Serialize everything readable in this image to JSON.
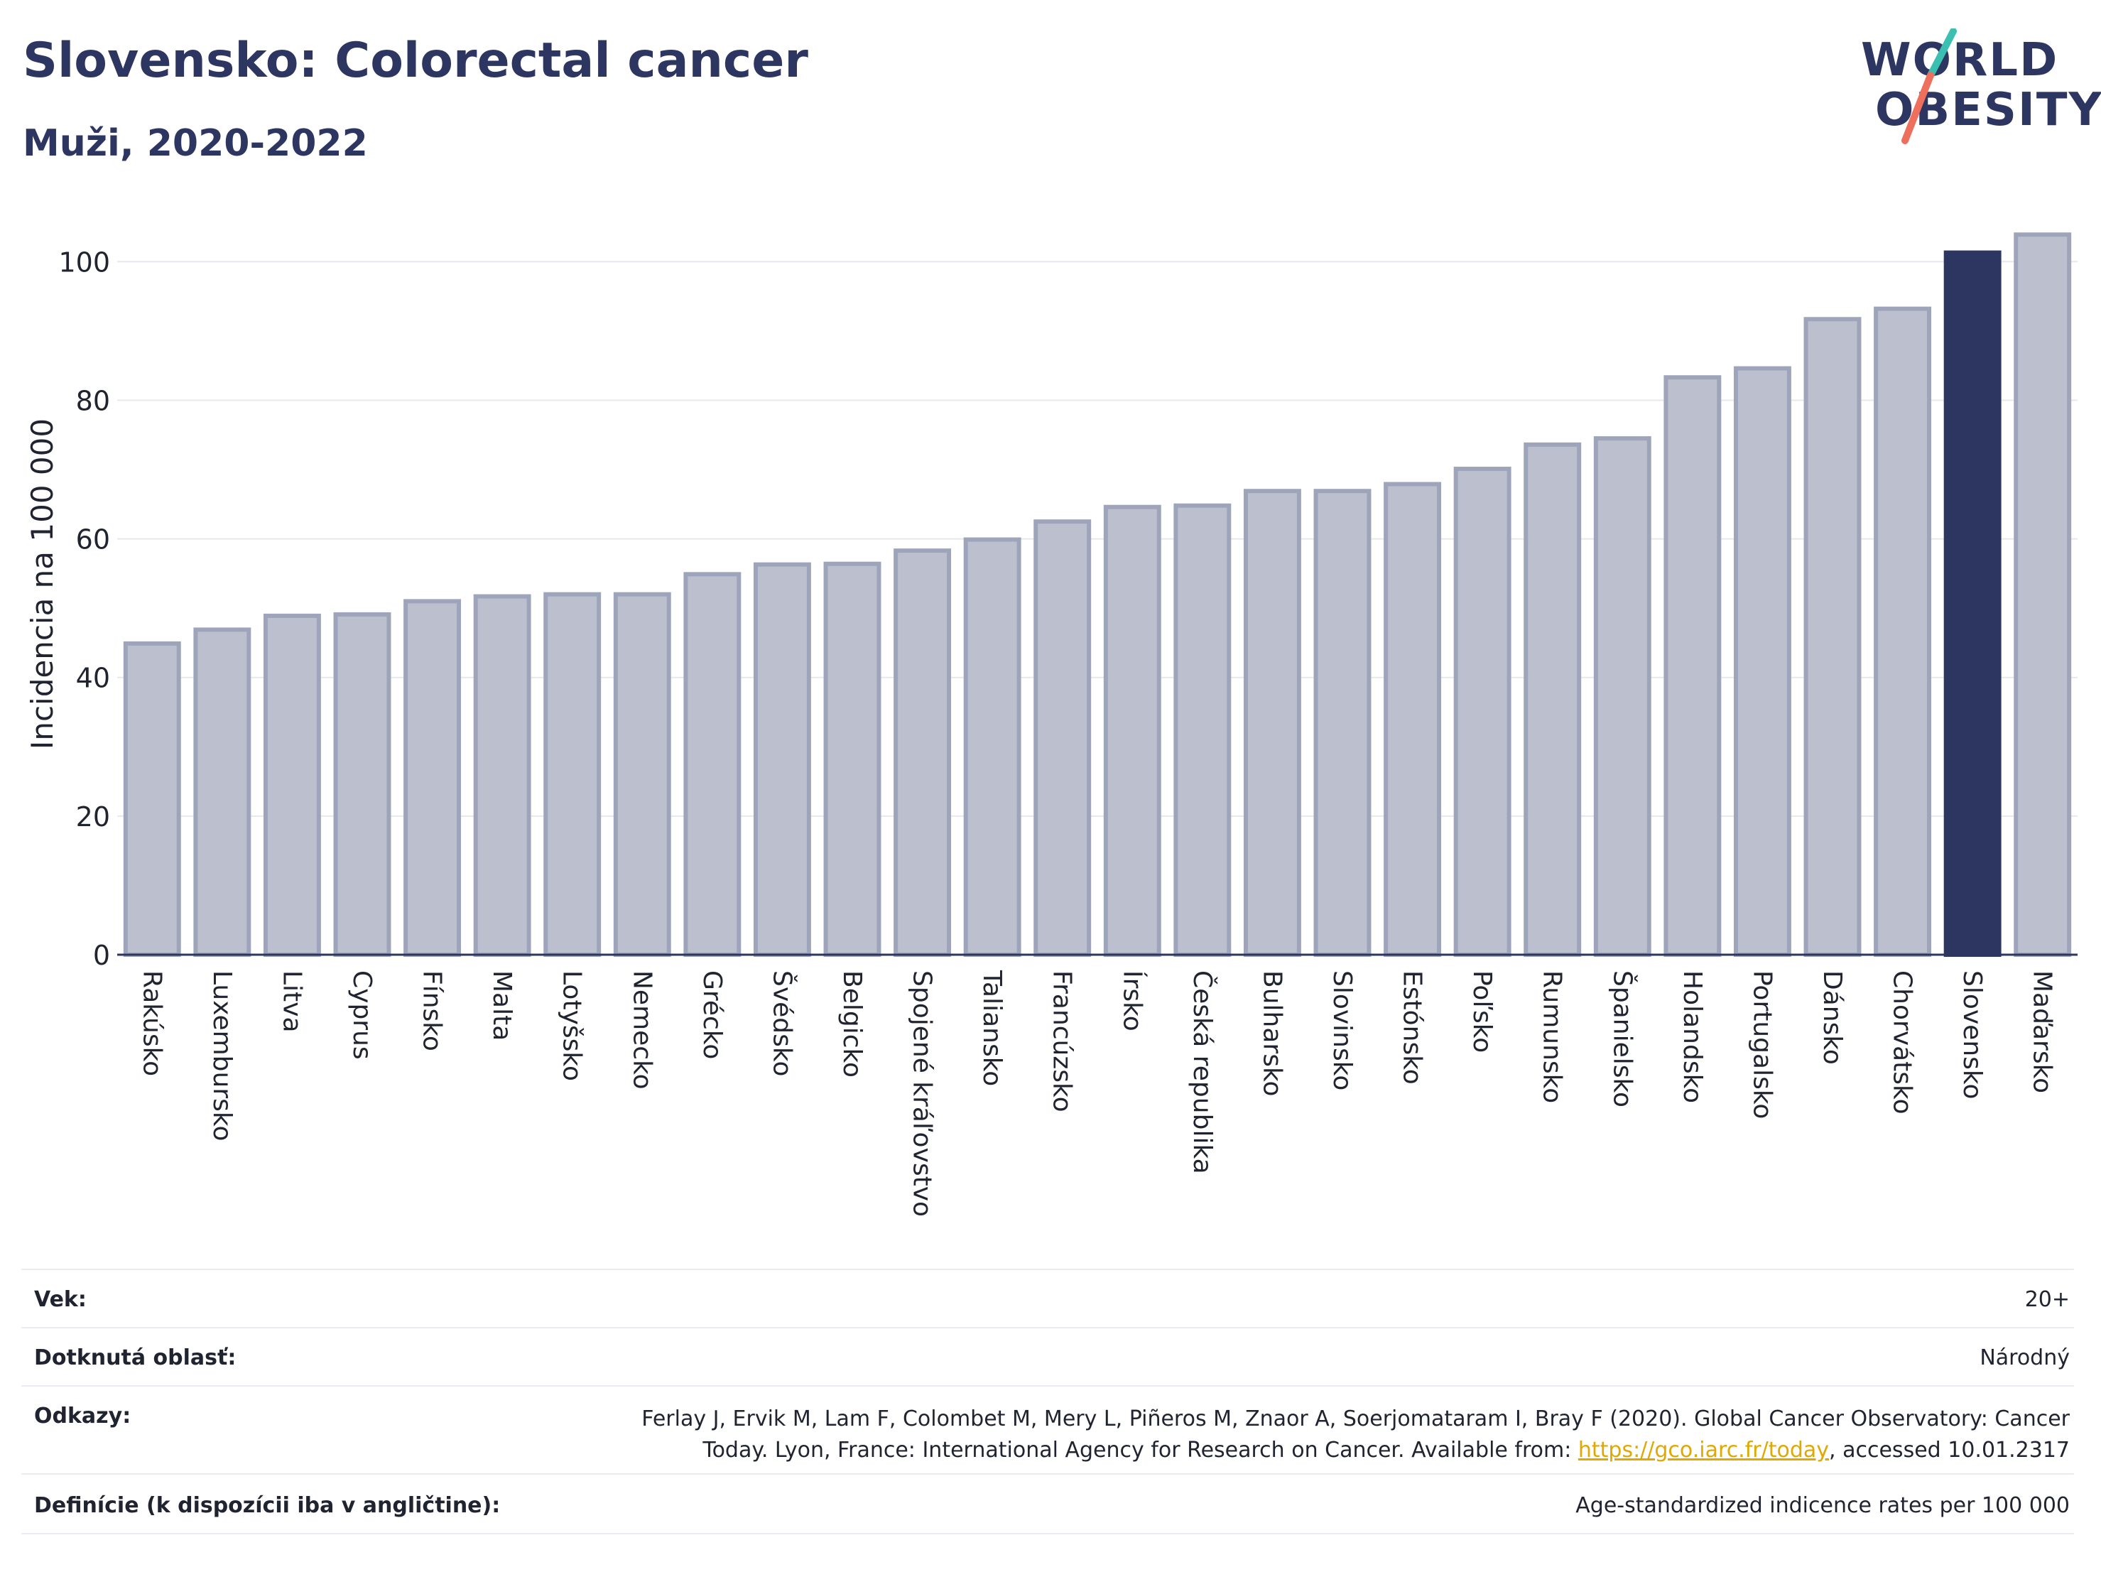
{
  "header": {
    "title": "Slovensko: Colorectal cancer",
    "subtitle": "Muži, 2020-2022",
    "logo_line1": "WORLD",
    "logo_line2": "OBESITY"
  },
  "colors": {
    "highlight": "#2d3561",
    "bar": "#bcc0ce",
    "bar_stroke": "#9ea4b9",
    "grid": "#e6e8ee",
    "logo_teal": "#3bbfb0",
    "logo_coral": "#ef6f5d"
  },
  "chart_data": {
    "type": "bar",
    "ylabel": "Incidencia na 100 000",
    "ylim": [
      0,
      107
    ],
    "yticks": [
      0,
      20,
      40,
      60,
      80,
      100
    ],
    "highlight": "Slovensko",
    "categories": [
      "Rakúsko",
      "Luxembursko",
      "Litva",
      "Cyprus",
      "Fínsko",
      "Malta",
      "Lotyšsko",
      "Nemecko",
      "Grécko",
      "Švédsko",
      "Belgicko",
      "Spojené kráľovstvo",
      "Taliansko",
      "Francúzsko",
      "Írsko",
      "Česká republika",
      "Bulharsko",
      "Slovinsko",
      "Estónsko",
      "Poľsko",
      "Rumunsko",
      "Španielsko",
      "Holandsko",
      "Portugalsko",
      "Dánsko",
      "Chorvátsko",
      "Slovensko",
      "Maďarsko"
    ],
    "values": [
      44.9,
      46.9,
      48.9,
      49.1,
      51.0,
      51.7,
      52.0,
      52.0,
      54.9,
      56.3,
      56.4,
      58.3,
      59.9,
      62.5,
      64.6,
      64.8,
      66.9,
      66.9,
      67.9,
      70.1,
      73.6,
      74.5,
      83.3,
      84.6,
      91.7,
      93.2,
      101.3,
      103.9
    ]
  },
  "info": {
    "age_label": "Vek:",
    "age_value": "20+",
    "area_label": "Dotknutá oblasť:",
    "area_value": "Národný",
    "refs_label": "Odkazy:",
    "refs_line1": "Ferlay J, Ervik M, Lam F, Colombet M, Mery L, Piñeros M, Znaor A, Soerjomataram I, Bray F (2020). Global Cancer Observatory: Cancer",
    "refs_line2_pre": "Today. Lyon, France: International Agency for Research on Cancer. Available from: ",
    "refs_link": "https://gco.iarc.fr/today",
    "refs_line2_post": ", accessed 10.01.2317",
    "def_label": "Definície (k dispozícii iba v angličtine):",
    "def_value": "Age-standardized indicence rates per 100 000"
  }
}
